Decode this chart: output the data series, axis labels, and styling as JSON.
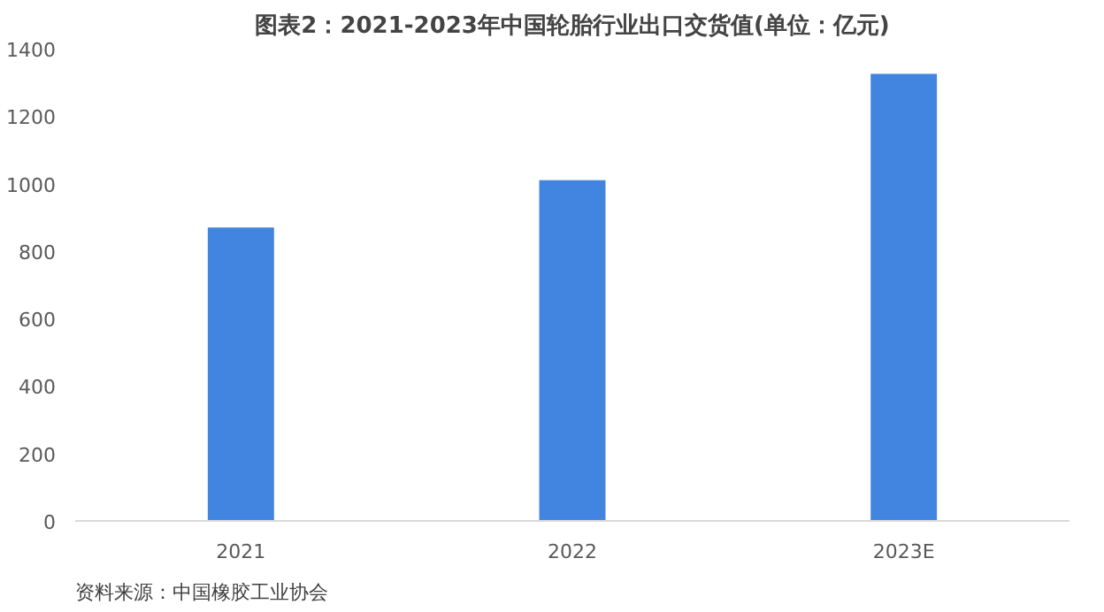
{
  "chart_data": {
    "type": "bar",
    "title": "图表2：2021-2023年中国轮胎行业出口交货值(单位：亿元)",
    "categories": [
      "2021",
      "2022",
      "2023E"
    ],
    "values": [
      870,
      1010,
      1325
    ],
    "color": "#4285e0",
    "ylim": [
      0,
      1400
    ],
    "yticks": [
      0,
      200,
      400,
      600,
      800,
      1000,
      1200,
      1400
    ],
    "grid": false,
    "annotations": [
      "资料来源：中国橡胶工业协会"
    ]
  }
}
